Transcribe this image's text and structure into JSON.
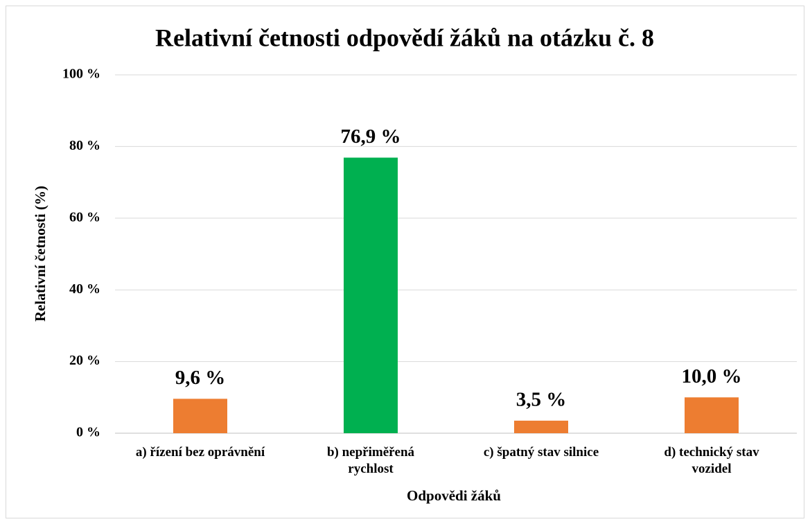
{
  "chart_data": {
    "type": "bar",
    "title": "Relativní četnosti odpovědí žáků na otázku č. 8",
    "x_label": "Odpovědi žáků",
    "y_label": "Relativní četnosti (%)",
    "categories": [
      "a) řízení bez oprávnění",
      "b) nepřiměřená\nrychlost",
      "c) špatný stav silnice",
      "d) technický stav\nvozidel"
    ],
    "values": [
      9.6,
      76.9,
      3.5,
      10.0
    ],
    "value_labels": [
      "9,6 %",
      "76,9 %",
      "3,5 %",
      "10,0 %"
    ],
    "colors": [
      "#ED7D31",
      "#00B050",
      "#ED7D31",
      "#ED7D31"
    ],
    "ylim": [
      0,
      100
    ],
    "yticks": [
      {
        "value": 0,
        "label": "0 %"
      },
      {
        "value": 20,
        "label": "20 %"
      },
      {
        "value": 40,
        "label": "40 %"
      },
      {
        "value": 60,
        "label": "60 %"
      },
      {
        "value": 80,
        "label": "80 %"
      },
      {
        "value": 100,
        "label": "100 %"
      }
    ],
    "grid": true
  }
}
